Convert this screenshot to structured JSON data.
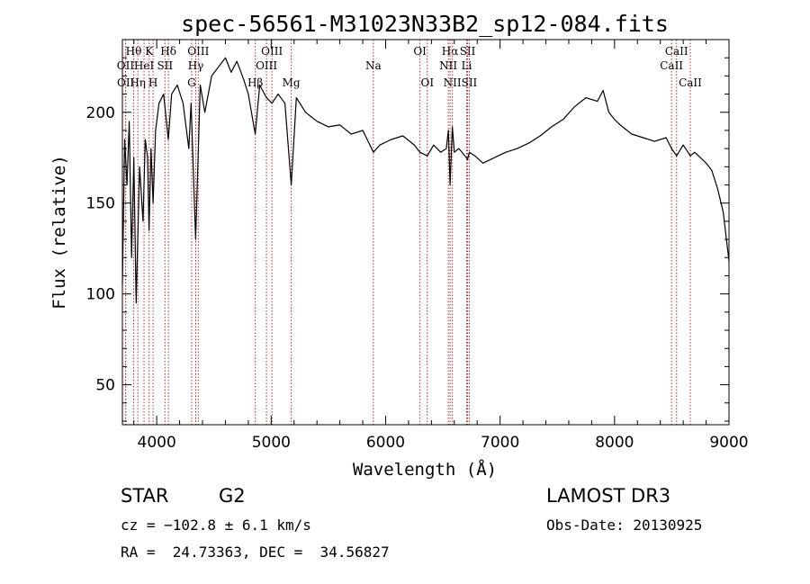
{
  "chart_data": {
    "type": "line",
    "title": "spec-56561-M31023N33B2_sp12-084.fits",
    "xlabel": "Wavelength (Å)",
    "ylabel": "Flux (relative)",
    "xlim": [
      3700,
      9000
    ],
    "ylim": [
      28,
      240
    ],
    "xticks": [
      "4000",
      "5000",
      "6000",
      "7000",
      "8000",
      "9000"
    ],
    "xtick_values": [
      4000,
      5000,
      6000,
      7000,
      8000,
      9000
    ],
    "yticks": [
      "50",
      "100",
      "150",
      "200"
    ],
    "ytick_values": [
      50,
      100,
      150,
      200
    ],
    "line_color": "#000000",
    "marker_color": "#b03030",
    "grid": false,
    "series": [
      {
        "x": [
          3700,
          3720,
          3740,
          3760,
          3780,
          3800,
          3820,
          3850,
          3880,
          3900,
          3920,
          3933,
          3950,
          3968,
          3990,
          4020,
          4060,
          4101,
          4130,
          4180,
          4230,
          4280,
          4300,
          4340,
          4380,
          4420,
          4480,
          4540,
          4600,
          4650,
          4700,
          4760,
          4800,
          4861,
          4900,
          4959,
          5007,
          5060,
          5120,
          5175,
          5220,
          5300,
          5400,
          5500,
          5600,
          5700,
          5800,
          5893,
          5950,
          6050,
          6150,
          6250,
          6300,
          6364,
          6420,
          6480,
          6530,
          6548,
          6563,
          6583,
          6600,
          6640,
          6680,
          6716,
          6731,
          6780,
          6850,
          6950,
          7050,
          7150,
          7250,
          7350,
          7450,
          7550,
          7650,
          7750,
          7850,
          7900,
          7950,
          8000,
          8050,
          8150,
          8250,
          8350,
          8450,
          8498,
          8542,
          8600,
          8662,
          8700,
          8750,
          8800,
          8850,
          8900,
          8950,
          9000
        ],
        "y": [
          105,
          185,
          160,
          195,
          120,
          175,
          95,
          170,
          140,
          185,
          175,
          135,
          180,
          150,
          190,
          205,
          210,
          185,
          210,
          215,
          205,
          180,
          205,
          130,
          215,
          200,
          220,
          225,
          230,
          222,
          228,
          218,
          210,
          188,
          215,
          208,
          205,
          210,
          205,
          160,
          208,
          200,
          195,
          192,
          193,
          188,
          190,
          178,
          182,
          185,
          187,
          182,
          178,
          176,
          182,
          178,
          180,
          190,
          160,
          192,
          178,
          180,
          177,
          174,
          178,
          176,
          172,
          175,
          178,
          180,
          183,
          187,
          192,
          196,
          203,
          208,
          206,
          212,
          200,
          196,
          193,
          188,
          186,
          184,
          186,
          180,
          176,
          182,
          176,
          178,
          175,
          172,
          168,
          158,
          145,
          118
        ]
      }
    ],
    "spectral_lines": [
      {
        "label": "Hθ",
        "x": 3798,
        "row": 1
      },
      {
        "label": "OII",
        "x": 3727,
        "row": 2
      },
      {
        "label": "OII",
        "x": 3729,
        "row": 3
      },
      {
        "label": "K",
        "x": 3934,
        "row": 1
      },
      {
        "label": "HeI",
        "x": 3889,
        "row": 2
      },
      {
        "label": "Hη",
        "x": 3835,
        "row": 3
      },
      {
        "label": "Hδ",
        "x": 4102,
        "row": 1
      },
      {
        "label": "SII",
        "x": 4072,
        "row": 2
      },
      {
        "label": "H",
        "x": 3968,
        "row": 3
      },
      {
        "label": "OIII",
        "x": 4363,
        "row": 1
      },
      {
        "label": "Hγ",
        "x": 4341,
        "row": 2
      },
      {
        "label": "G",
        "x": 4305,
        "row": 3
      },
      {
        "label": "OIII",
        "x": 5007,
        "row": 1
      },
      {
        "label": "OIII",
        "x": 4959,
        "row": 2
      },
      {
        "label": "Hβ",
        "x": 4861,
        "row": 3
      },
      {
        "label": "Mg",
        "x": 5175,
        "row": 3
      },
      {
        "label": "Na",
        "x": 5893,
        "row": 2
      },
      {
        "label": "OI",
        "x": 6300,
        "row": 1
      },
      {
        "label": "OI",
        "x": 6364,
        "row": 3
      },
      {
        "label": "Hα",
        "x": 6563,
        "row": 1
      },
      {
        "label": "SII",
        "x": 6716,
        "row": 1
      },
      {
        "label": "NII",
        "x": 6548,
        "row": 2
      },
      {
        "label": "Li",
        "x": 6708,
        "row": 2
      },
      {
        "label": "NII",
        "x": 6583,
        "row": 3
      },
      {
        "label": "SII",
        "x": 6731,
        "row": 3
      },
      {
        "label": "CaII",
        "x": 8542,
        "row": 1
      },
      {
        "label": "CaII",
        "x": 8498,
        "row": 2
      },
      {
        "label": "CaII",
        "x": 8662,
        "row": 3
      }
    ]
  },
  "info": {
    "object_class": "STAR",
    "subclass": "G2",
    "survey": "LAMOST DR3",
    "redshift": "cz = −102.8 ± 6.1 km/s",
    "obs_date": "Obs-Date: 20130925",
    "coords": "RA =  24.73363, DEC =  34.56827"
  }
}
